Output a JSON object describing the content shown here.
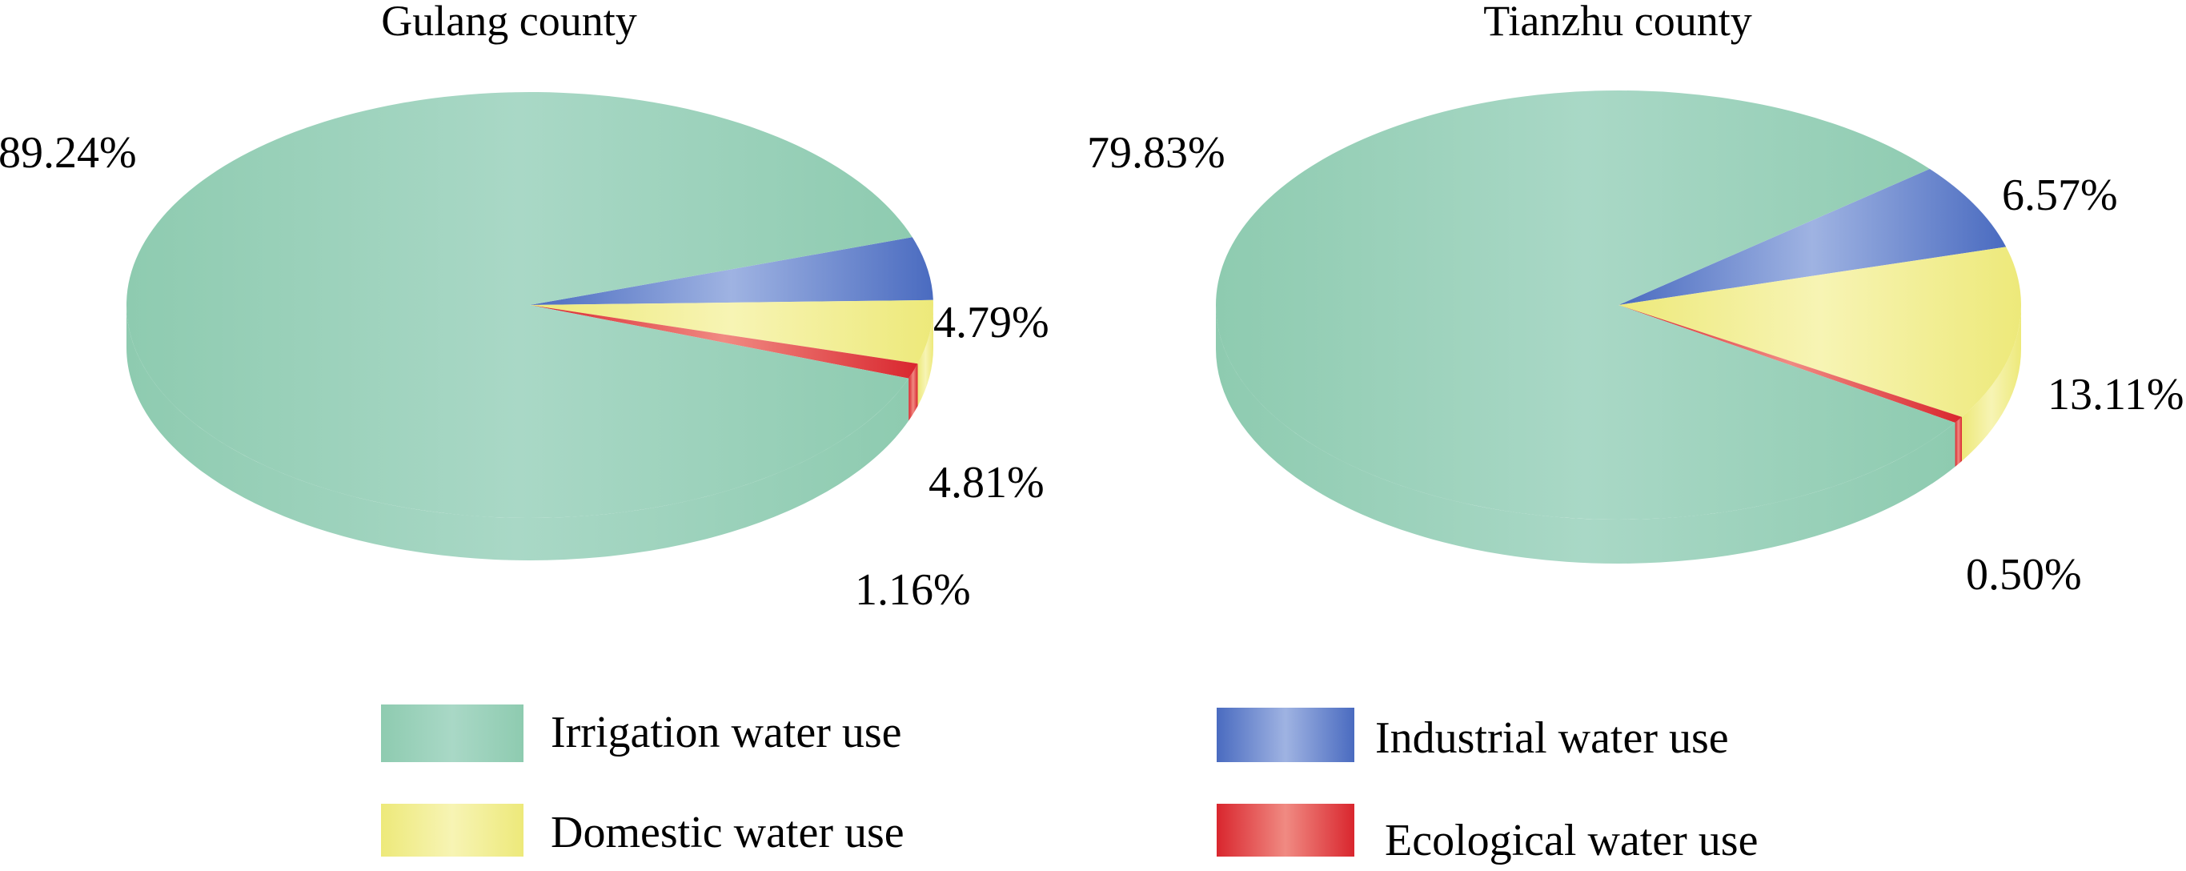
{
  "categories": [
    "Irrigation water use",
    "Industrial water use",
    "Domestic water use",
    "Ecological water use"
  ],
  "colors": {
    "irrigation": "#8ecbb0",
    "irrigation_light": "#a9d8c6",
    "industrial": "#4a6bc0",
    "industrial_light": "#9fb3e2",
    "domestic": "#ede97a",
    "domestic_light": "#f7f4b4",
    "ecological": "#d9262e",
    "ecological_light": "#f08a82"
  },
  "chart_data": [
    {
      "type": "pie",
      "title": "Gulang county",
      "slices": [
        {
          "category": "Irrigation water use",
          "key": "irrigation",
          "value": 89.24,
          "label": "89.24%"
        },
        {
          "category": "Industrial water use",
          "key": "industrial",
          "value": 4.79,
          "label": "4.79%"
        },
        {
          "category": "Domestic water use",
          "key": "domestic",
          "value": 4.81,
          "label": "4.81%"
        },
        {
          "category": "Ecological water use",
          "key": "ecological",
          "value": 1.16,
          "label": "1.16%"
        }
      ]
    },
    {
      "type": "pie",
      "title": "Tianzhu county",
      "slices": [
        {
          "category": "Irrigation water use",
          "key": "irrigation",
          "value": 79.83,
          "label": "79.83%"
        },
        {
          "category": "Industrial water use",
          "key": "industrial",
          "value": 6.57,
          "label": "6.57%"
        },
        {
          "category": "Domestic water use",
          "key": "domestic",
          "value": 13.11,
          "label": "13.11%"
        },
        {
          "category": "Ecological water use",
          "key": "ecological",
          "value": 0.5,
          "label": "0.50%"
        }
      ]
    }
  ],
  "legend": [
    {
      "label": "Irrigation water use",
      "key": "irrigation"
    },
    {
      "label": "Industrial water use",
      "key": "industrial"
    },
    {
      "label": "Domestic water use",
      "key": "domestic"
    },
    {
      "label": "Ecological water use",
      "key": "ecological"
    }
  ]
}
